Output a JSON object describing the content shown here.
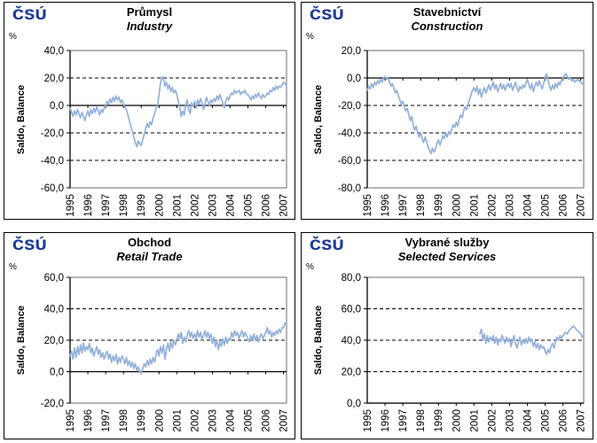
{
  "page": {
    "background": "#FFFFFF"
  },
  "styles": {
    "line_color": "#93B1DA",
    "logo_color": "#1E3C96",
    "grid_color": "#000000",
    "plot_border_color": "#848284"
  },
  "chart_data": [
    {
      "type": "line",
      "logo": "ČSÚ",
      "unit": "%",
      "title": "Průmysl",
      "subtitle": "Industry",
      "ylabel": "Saldo, Balance",
      "ylim": [
        -60,
        40
      ],
      "yticks": [
        40,
        20,
        0,
        -20,
        -40,
        -60
      ],
      "ytick_labels": [
        "40,0",
        "20,0",
        "0,0",
        "-20,0",
        "-40,0",
        "-60,0"
      ],
      "x_tick_years": [
        "1995",
        "1996",
        "1997",
        "1998",
        "1999",
        "2000",
        "2001",
        "2002",
        "2003",
        "2004",
        "2005",
        "2006",
        "2007"
      ],
      "x_axis": {
        "start": "1995-01",
        "end": "2007-03",
        "unit": "month"
      },
      "grid": "dashed-horizontal",
      "legend": "none",
      "series_start_month_index": 0,
      "values": [
        -2,
        -5,
        -8,
        -4,
        -7,
        -3,
        -6,
        -9,
        -5,
        -8,
        -11,
        -7,
        -4,
        -8,
        -3,
        -6,
        -2,
        -5,
        -1,
        -4,
        -7,
        -3,
        -5,
        -2,
        0,
        3,
        1,
        5,
        2,
        6,
        3,
        7,
        4,
        6,
        2,
        4,
        1,
        -1,
        -3,
        -7,
        -11,
        -15,
        -19,
        -23,
        -27,
        -30,
        -26,
        -28,
        -29,
        -25,
        -21,
        -17,
        -13,
        -16,
        -12,
        -14,
        -9,
        -6,
        -2,
        0,
        8,
        16,
        21,
        19,
        14,
        17,
        12,
        15,
        10,
        13,
        9,
        11,
        8,
        3,
        -2,
        -8,
        -4,
        -7,
        1,
        4,
        -3,
        -6,
        2,
        -1,
        3,
        -2,
        4,
        1,
        5,
        2,
        -3,
        1,
        6,
        3,
        0,
        4,
        2,
        5,
        3,
        7,
        4,
        8,
        5,
        2,
        -2,
        3,
        6,
        4,
        7,
        9,
        8,
        11,
        9,
        10,
        11,
        8,
        10,
        9,
        11,
        8,
        8,
        6,
        4,
        7,
        5,
        8,
        6,
        9,
        7,
        5,
        8,
        6,
        7,
        9,
        8,
        11,
        10,
        13,
        11,
        14,
        12,
        14,
        13,
        15,
        17,
        16,
        14
      ]
    },
    {
      "type": "line",
      "logo": "ČSÚ",
      "unit": "%",
      "title": "Stavebnictví",
      "subtitle": "Construction",
      "ylabel": "Saldo, Balance",
      "ylim": [
        -80,
        20
      ],
      "yticks": [
        20,
        0,
        -20,
        -40,
        -60,
        -80
      ],
      "ytick_labels": [
        "20,0",
        "0,0",
        "-20,0",
        "-40,0",
        "-60,0",
        "-80,0"
      ],
      "x_tick_years": [
        "1995",
        "1996",
        "1997",
        "1998",
        "1999",
        "2000",
        "2001",
        "2002",
        "2003",
        "2004",
        "2005",
        "2006",
        "2007"
      ],
      "x_axis": {
        "start": "1995-01",
        "end": "2007-03",
        "unit": "month"
      },
      "grid": "dashed-horizontal",
      "legend": "none",
      "series_start_month_index": 0,
      "values": [
        -9,
        -6,
        -8,
        -4,
        -7,
        -3,
        -5,
        -2,
        -4,
        -1,
        -3,
        0,
        1,
        -1,
        0,
        -3,
        -6,
        -4,
        -8,
        -11,
        -9,
        -13,
        -16,
        -19,
        -17,
        -21,
        -24,
        -22,
        -27,
        -31,
        -28,
        -34,
        -38,
        -35,
        -40,
        -43,
        -40,
        -44,
        -47,
        -43,
        -46,
        -50,
        -53,
        -55,
        -51,
        -54,
        -52,
        -48,
        -45,
        -49,
        -46,
        -42,
        -44,
        -40,
        -43,
        -39,
        -41,
        -37,
        -34,
        -36,
        -32,
        -35,
        -30,
        -27,
        -29,
        -24,
        -21,
        -23,
        -19,
        -16,
        -12,
        -9,
        -7,
        -10,
        -6,
        -12,
        -8,
        -14,
        -10,
        -7,
        -11,
        -8,
        -5,
        -9,
        -6,
        -3,
        -8,
        -5,
        -10,
        -7,
        -4,
        -8,
        -5,
        -9,
        -6,
        -4,
        -7,
        -4,
        -9,
        -6,
        -3,
        -7,
        -10,
        -6,
        -8,
        -5,
        -7,
        -4,
        -1,
        -5,
        -8,
        -4,
        -10,
        -6,
        -3,
        -6,
        -2,
        -5,
        -8,
        -4,
        1,
        3,
        -2,
        -6,
        -9,
        -5,
        -8,
        -4,
        -7,
        -3,
        -5,
        -2,
        0,
        2,
        3,
        1,
        -1,
        0,
        -2,
        -1,
        -3,
        -2,
        -1,
        -2,
        -3,
        -4,
        -5
      ]
    },
    {
      "type": "line",
      "logo": "ČSÚ",
      "unit": "%",
      "title": "Obchod",
      "subtitle": "Retail Trade",
      "ylabel": "Saldo, Balance",
      "ylim": [
        -20,
        60
      ],
      "yticks": [
        60,
        40,
        20,
        0,
        -20
      ],
      "ytick_labels": [
        "60,0",
        "40,0",
        "20,0",
        "0,0",
        "-20,0"
      ],
      "x_tick_years": [
        "1995",
        "1996",
        "1997",
        "1998",
        "1999",
        "2000",
        "2001",
        "2002",
        "2003",
        "2004",
        "2005",
        "2006",
        "2007"
      ],
      "x_axis": {
        "start": "1995-01",
        "end": "2007-03",
        "unit": "month"
      },
      "grid": "dashed-horizontal",
      "legend": "none",
      "series_start_month_index": 0,
      "values": [
        10,
        13,
        8,
        15,
        9,
        16,
        11,
        17,
        12,
        18,
        13,
        16,
        14,
        18,
        12,
        15,
        10,
        13,
        16,
        11,
        14,
        9,
        12,
        8,
        11,
        13,
        8,
        11,
        6,
        10,
        7,
        11,
        5,
        9,
        6,
        10,
        8,
        5,
        9,
        4,
        7,
        3,
        6,
        2,
        5,
        1,
        3,
        0,
        -1,
        2,
        5,
        3,
        7,
        4,
        8,
        5,
        9,
        6,
        11,
        14,
        10,
        16,
        12,
        17,
        8,
        14,
        18,
        13,
        19,
        15,
        20,
        17,
        20,
        24,
        21,
        25,
        18,
        22,
        19,
        23,
        26,
        22,
        25,
        21,
        24,
        21,
        26,
        22,
        25,
        20,
        23,
        26,
        22,
        25,
        21,
        24,
        18,
        22,
        16,
        20,
        14,
        19,
        16,
        21,
        17,
        22,
        18,
        21,
        20,
        25,
        22,
        26,
        23,
        25,
        21,
        24,
        26,
        22,
        25,
        23,
        21,
        19,
        23,
        20,
        24,
        20,
        23,
        19,
        22,
        24,
        21,
        23,
        25,
        28,
        24,
        26,
        22,
        25,
        23,
        26,
        24,
        27,
        25,
        28,
        28,
        31,
        30
      ]
    },
    {
      "type": "line",
      "logo": "ČSÚ",
      "unit": "%",
      "title": "Vybrané služby",
      "subtitle": "Selected Services",
      "ylabel": "Saldo, Balance",
      "ylim": [
        0,
        80
      ],
      "yticks": [
        80,
        60,
        40,
        20,
        0
      ],
      "ytick_labels": [
        "80,0",
        "60,0",
        "40,0",
        "20,0",
        "0,0"
      ],
      "x_tick_years": [
        "1995",
        "1996",
        "1997",
        "1998",
        "1999",
        "2000",
        "2001",
        "2002",
        "2003",
        "2004",
        "2005",
        "2006",
        "2007"
      ],
      "x_axis": {
        "start": "2001-05",
        "end": "2007-03",
        "unit": "month"
      },
      "grid": "dashed-horizontal",
      "legend": "none",
      "series_start_month_index": 76,
      "values": [
        44,
        47,
        40,
        44,
        38,
        43,
        39,
        42,
        40,
        43,
        38,
        42,
        37,
        41,
        39,
        43,
        40,
        38,
        42,
        39,
        41,
        36,
        40,
        43,
        38,
        35,
        39,
        42,
        37,
        40,
        38,
        41,
        38,
        42,
        39,
        41,
        36,
        39,
        35,
        38,
        34,
        37,
        35,
        36,
        33,
        31,
        34,
        32,
        36,
        38,
        35,
        39,
        42,
        40,
        43,
        41,
        43,
        44,
        45,
        44,
        46,
        47,
        48,
        49,
        48,
        47,
        46,
        45,
        44,
        42,
        43
      ]
    }
  ]
}
